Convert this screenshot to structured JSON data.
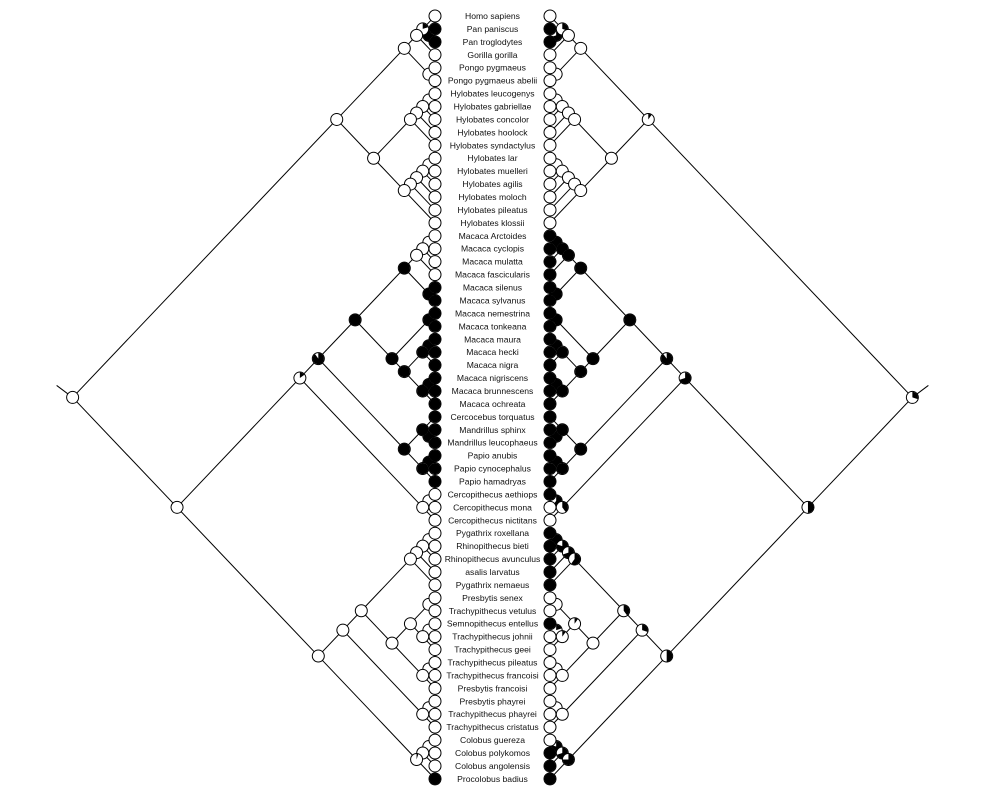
{
  "taxa": [
    {
      "name": "Homo sapiens",
      "left": 0,
      "right": 0
    },
    {
      "name": "Pan paniscus",
      "left": 1,
      "right": 1
    },
    {
      "name": "Pan troglodytes",
      "left": 1,
      "right": 1
    },
    {
      "name": "Gorilla gorilla",
      "left": 0,
      "right": 0
    },
    {
      "name": "Pongo pygmaeus",
      "left": 0,
      "right": 0
    },
    {
      "name": "Pongo pygmaeus abelii",
      "left": 0,
      "right": 0
    },
    {
      "name": "Hylobates leucogenys",
      "left": 0,
      "right": 0
    },
    {
      "name": "Hylobates gabriellae",
      "left": 0,
      "right": 0
    },
    {
      "name": "Hylobates concolor",
      "left": 0,
      "right": 0
    },
    {
      "name": "Hylobates hoolock",
      "left": 0,
      "right": 0
    },
    {
      "name": "Hylobates syndactylus",
      "left": 0,
      "right": 0
    },
    {
      "name": "Hylobates lar",
      "left": 0,
      "right": 0
    },
    {
      "name": "Hylobates muelleri",
      "left": 0,
      "right": 0
    },
    {
      "name": "Hylobates agilis",
      "left": 0,
      "right": 0
    },
    {
      "name": "Hylobates moloch",
      "left": 0,
      "right": 0
    },
    {
      "name": "Hylobates pileatus",
      "left": 0,
      "right": 0
    },
    {
      "name": "Hylobates klossii",
      "left": 0,
      "right": 0
    },
    {
      "name": "Macaca Arctoides",
      "left": 0,
      "right": 1
    },
    {
      "name": "Macaca cyclopis",
      "left": 0,
      "right": 1
    },
    {
      "name": "Macaca mulatta",
      "left": 0,
      "right": 1
    },
    {
      "name": "Macaca fascicularis",
      "left": 0,
      "right": 1
    },
    {
      "name": "Macaca silenus",
      "left": 1,
      "right": 1
    },
    {
      "name": "Macaca sylvanus",
      "left": 1,
      "right": 1
    },
    {
      "name": "Macaca nemestrina",
      "left": 1,
      "right": 1
    },
    {
      "name": "Macaca tonkeana",
      "left": 1,
      "right": 1
    },
    {
      "name": "Macaca maura",
      "left": 1,
      "right": 1
    },
    {
      "name": "Macaca hecki",
      "left": 1,
      "right": 1
    },
    {
      "name": "Macaca nigra",
      "left": 1,
      "right": 1
    },
    {
      "name": "Macaca nigriscens",
      "left": 1,
      "right": 1
    },
    {
      "name": "Macaca brunnescens",
      "left": 1,
      "right": 1
    },
    {
      "name": "Macaca ochreata",
      "left": 1,
      "right": 1
    },
    {
      "name": "Cercocebus torquatus",
      "left": 1,
      "right": 1
    },
    {
      "name": "Mandrillus sphinx",
      "left": 1,
      "right": 1
    },
    {
      "name": "Mandrillus leucophaeus",
      "left": 1,
      "right": 1
    },
    {
      "name": "Papio anubis",
      "left": 1,
      "right": 1
    },
    {
      "name": "Papio cynocephalus",
      "left": 1,
      "right": 1
    },
    {
      "name": "Papio hamadryas",
      "left": 1,
      "right": 1
    },
    {
      "name": "Cercopithecus aethiops",
      "left": 0,
      "right": 1
    },
    {
      "name": "Cercopithecus mona",
      "left": 0,
      "right": 0
    },
    {
      "name": "Cercopithecus nictitans",
      "left": 0,
      "right": 0
    },
    {
      "name": "Pygathrix roxellana",
      "left": 0,
      "right": 1
    },
    {
      "name": "Rhinopithecus bieti",
      "left": 0,
      "right": 1
    },
    {
      "name": "Rhinopithecus avunculus",
      "left": 0,
      "right": 1
    },
    {
      "name": "asalis larvatus",
      "left": 0,
      "right": 1
    },
    {
      "name": "Pygathrix nemaeus",
      "left": 0,
      "right": 1
    },
    {
      "name": "Presbytis senex",
      "left": 0,
      "right": 0
    },
    {
      "name": "Trachypithecus vetulus",
      "left": 0,
      "right": 0
    },
    {
      "name": "Semnopithecus entellus",
      "left": 0,
      "right": 1
    },
    {
      "name": "Trachypithecus johnii",
      "left": 0,
      "right": 0
    },
    {
      "name": "Trachypithecus geei",
      "left": 0,
      "right": 0
    },
    {
      "name": "Trachypithecus pileatus",
      "left": 0,
      "right": 0
    },
    {
      "name": "Trachypithecus francoisi",
      "left": 0,
      "right": 0
    },
    {
      "name": "Presbytis francoisi",
      "left": 0,
      "right": 0
    },
    {
      "name": "Presbytis phayrei",
      "left": 0,
      "right": 0
    },
    {
      "name": "Trachypithecus phayrei",
      "left": 0,
      "right": 0
    },
    {
      "name": "Trachypithecus cristatus",
      "left": 0,
      "right": 0
    },
    {
      "name": "Colobus guereza",
      "left": 0,
      "right": 0
    },
    {
      "name": "Colobus polykomos",
      "left": 0,
      "right": 1
    },
    {
      "name": "Colobus angolensis",
      "left": 0,
      "right": 1
    },
    {
      "name": "Procolobus badius",
      "left": 1,
      "right": 1
    }
  ],
  "left_tree": [
    {
      "a": 1,
      "b": 2,
      "p": 1
    },
    {
      "a": 0,
      "b": 2,
      "p": 0.2
    },
    {
      "a": 0,
      "b": 3,
      "p": 0
    },
    {
      "a": 4,
      "b": 5,
      "p": 0
    },
    {
      "a": 0,
      "b": 5,
      "p": 0
    },
    {
      "a": 6,
      "b": 7,
      "p": 0
    },
    {
      "a": 6,
      "b": 8,
      "p": 0
    },
    {
      "a": 6,
      "b": 9,
      "p": 0
    },
    {
      "a": 6,
      "b": 10,
      "p": 0
    },
    {
      "a": 11,
      "b": 12,
      "p": 0
    },
    {
      "a": 11,
      "b": 13,
      "p": 0
    },
    {
      "a": 11,
      "b": 14,
      "p": 0
    },
    {
      "a": 11,
      "b": 15,
      "p": 0
    },
    {
      "a": 11,
      "b": 16,
      "p": 0
    },
    {
      "a": 6,
      "b": 16,
      "p": 0
    },
    {
      "a": 0,
      "b": 16,
      "p": 0
    },
    {
      "a": 17,
      "b": 18,
      "p": 0
    },
    {
      "a": 17,
      "b": 19,
      "p": 0
    },
    {
      "a": 17,
      "b": 20,
      "p": 0
    },
    {
      "a": 21,
      "b": 22,
      "p": 1
    },
    {
      "a": 17,
      "b": 22,
      "p": 1
    },
    {
      "a": 23,
      "b": 24,
      "p": 1
    },
    {
      "a": 25,
      "b": 26,
      "p": 1
    },
    {
      "a": 25,
      "b": 27,
      "p": 1
    },
    {
      "a": 28,
      "b": 29,
      "p": 1
    },
    {
      "a": 28,
      "b": 30,
      "p": 1
    },
    {
      "a": 25,
      "b": 30,
      "p": 1
    },
    {
      "a": 23,
      "b": 30,
      "p": 1
    },
    {
      "a": 17,
      "b": 30,
      "p": 1
    },
    {
      "a": 32,
      "b": 33,
      "p": 1
    },
    {
      "a": 31,
      "b": 33,
      "p": 1
    },
    {
      "a": 34,
      "b": 35,
      "p": 1
    },
    {
      "a": 34,
      "b": 36,
      "p": 1
    },
    {
      "a": 31,
      "b": 36,
      "p": 1
    },
    {
      "a": 17,
      "b": 36,
      "p": 0.9
    },
    {
      "a": 37,
      "b": 38,
      "p": 0
    },
    {
      "a": 37,
      "b": 39,
      "p": 0
    },
    {
      "a": 17,
      "b": 39,
      "p": 0.15
    },
    {
      "a": 40,
      "b": 41,
      "p": 0
    },
    {
      "a": 40,
      "b": 42,
      "p": 0
    },
    {
      "a": 40,
      "b": 43,
      "p": 0
    },
    {
      "a": 40,
      "b": 44,
      "p": 0
    },
    {
      "a": 45,
      "b": 46,
      "p": 0
    },
    {
      "a": 47,
      "b": 48,
      "p": 0
    },
    {
      "a": 47,
      "b": 49,
      "p": 0
    },
    {
      "a": 45,
      "b": 49,
      "p": 0
    },
    {
      "a": 50,
      "b": 51,
      "p": 0
    },
    {
      "a": 50,
      "b": 52,
      "p": 0
    },
    {
      "a": 45,
      "b": 52,
      "p": 0
    },
    {
      "a": 40,
      "b": 52,
      "p": 0
    },
    {
      "a": 53,
      "b": 54,
      "p": 0
    },
    {
      "a": 53,
      "b": 55,
      "p": 0
    },
    {
      "a": 40,
      "b": 55,
      "p": 0
    },
    {
      "a": 56,
      "b": 57,
      "p": 0
    },
    {
      "a": 56,
      "b": 58,
      "p": 0
    },
    {
      "a": 56,
      "b": 59,
      "p": 0.05
    },
    {
      "a": 40,
      "b": 59,
      "p": 0
    },
    {
      "a": 17,
      "b": 59,
      "p": 0
    },
    {
      "a": 0,
      "b": 59,
      "p": 0
    }
  ],
  "right_tree": [
    {
      "a": 1,
      "b": 2,
      "p": 0.7
    },
    {
      "a": 0,
      "b": 2,
      "p": 0.3
    },
    {
      "a": 0,
      "b": 3,
      "p": 0
    },
    {
      "a": 4,
      "b": 5,
      "p": 0
    },
    {
      "a": 0,
      "b": 5,
      "p": 0
    },
    {
      "a": 6,
      "b": 7,
      "p": 0
    },
    {
      "a": 6,
      "b": 8,
      "p": 0
    },
    {
      "a": 6,
      "b": 9,
      "p": 0
    },
    {
      "a": 6,
      "b": 10,
      "p": 0
    },
    {
      "a": 11,
      "b": 12,
      "p": 0
    },
    {
      "a": 11,
      "b": 13,
      "p": 0
    },
    {
      "a": 11,
      "b": 14,
      "p": 0
    },
    {
      "a": 11,
      "b": 15,
      "p": 0
    },
    {
      "a": 11,
      "b": 16,
      "p": 0
    },
    {
      "a": 6,
      "b": 16,
      "p": 0
    },
    {
      "a": 0,
      "b": 16,
      "p": 0.1
    },
    {
      "a": 17,
      "b": 18,
      "p": 1
    },
    {
      "a": 17,
      "b": 19,
      "p": 1
    },
    {
      "a": 17,
      "b": 20,
      "p": 1
    },
    {
      "a": 21,
      "b": 22,
      "p": 1
    },
    {
      "a": 17,
      "b": 22,
      "p": 1
    },
    {
      "a": 23,
      "b": 24,
      "p": 1
    },
    {
      "a": 25,
      "b": 26,
      "p": 1
    },
    {
      "a": 25,
      "b": 27,
      "p": 1
    },
    {
      "a": 28,
      "b": 29,
      "p": 1
    },
    {
      "a": 28,
      "b": 30,
      "p": 1
    },
    {
      "a": 25,
      "b": 30,
      "p": 1
    },
    {
      "a": 23,
      "b": 30,
      "p": 1
    },
    {
      "a": 17,
      "b": 30,
      "p": 1
    },
    {
      "a": 32,
      "b": 33,
      "p": 1
    },
    {
      "a": 31,
      "b": 33,
      "p": 1
    },
    {
      "a": 34,
      "b": 35,
      "p": 1
    },
    {
      "a": 34,
      "b": 36,
      "p": 1
    },
    {
      "a": 31,
      "b": 36,
      "p": 1
    },
    {
      "a": 17,
      "b": 36,
      "p": 0.9
    },
    {
      "a": 37,
      "b": 38,
      "p": 0.6
    },
    {
      "a": 37,
      "b": 39,
      "p": 0.4
    },
    {
      "a": 17,
      "b": 39,
      "p": 0.7
    },
    {
      "a": 40,
      "b": 41,
      "p": 1
    },
    {
      "a": 40,
      "b": 42,
      "p": 0.8
    },
    {
      "a": 40,
      "b": 43,
      "p": 0.7
    },
    {
      "a": 40,
      "b": 44,
      "p": 0.6
    },
    {
      "a": 45,
      "b": 46,
      "p": 0
    },
    {
      "a": 47,
      "b": 48,
      "p": 0.2
    },
    {
      "a": 47,
      "b": 49,
      "p": 0.1
    },
    {
      "a": 45,
      "b": 49,
      "p": 0.1
    },
    {
      "a": 50,
      "b": 51,
      "p": 0
    },
    {
      "a": 50,
      "b": 52,
      "p": 0
    },
    {
      "a": 45,
      "b": 52,
      "p": 0
    },
    {
      "a": 40,
      "b": 52,
      "p": 0.4
    },
    {
      "a": 53,
      "b": 54,
      "p": 0
    },
    {
      "a": 53,
      "b": 55,
      "p": 0
    },
    {
      "a": 40,
      "b": 55,
      "p": 0.3
    },
    {
      "a": 56,
      "b": 57,
      "p": 0.8
    },
    {
      "a": 56,
      "b": 58,
      "p": 0.7
    },
    {
      "a": 56,
      "b": 59,
      "p": 0.75
    },
    {
      "a": 40,
      "b": 59,
      "p": 0.5
    },
    {
      "a": 17,
      "b": 59,
      "p": 0.5
    },
    {
      "a": 0,
      "b": 59,
      "p": 0.3
    }
  ]
}
